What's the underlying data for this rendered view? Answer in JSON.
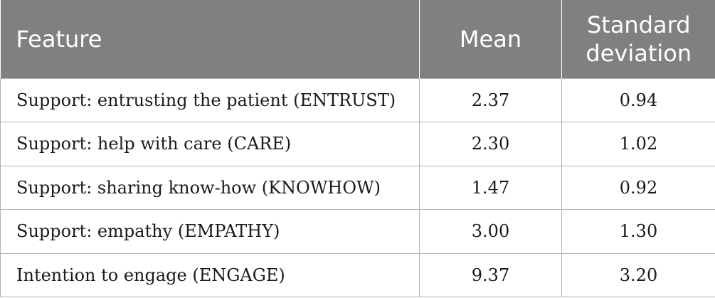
{
  "table": {
    "headers": [
      "Feature",
      "Mean",
      "Standard deviation"
    ],
    "rows": [
      [
        "Support: entrusting the patient (ENTRUST)",
        "2.37",
        "0.94"
      ],
      [
        "Support: help with care (CARE)",
        "2.30",
        "1.02"
      ],
      [
        "Support: sharing know-how (KNOWHOW)",
        "1.47",
        "0.92"
      ],
      [
        "Support: empathy (EMPATHY)",
        "3.00",
        "1.30"
      ],
      [
        "Intention to engage (ENGAGE)",
        "9.37",
        "3.20"
      ]
    ]
  },
  "colors": {
    "header_bg": "#808080",
    "header_text": "#ffffff",
    "border": "#b3b3b3"
  }
}
